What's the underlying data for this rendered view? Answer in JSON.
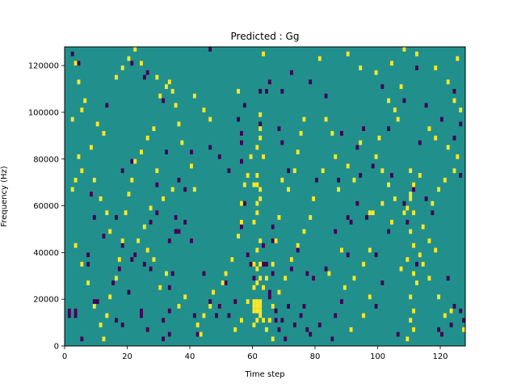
{
  "chart_data": {
    "type": "heatmap",
    "title": "Predicted : Gg",
    "xlabel": "Time step",
    "ylabel": "Frequency (Hz)",
    "xlim": [
      0,
      128
    ],
    "ylim": [
      0,
      128000
    ],
    "x_ticks": [
      0,
      20,
      40,
      60,
      80,
      100,
      120
    ],
    "y_ticks": [
      0,
      20000,
      40000,
      60000,
      80000,
      100000,
      120000
    ],
    "x_tick_labels": [
      "0",
      "20",
      "40",
      "60",
      "80",
      "100",
      "120"
    ],
    "y_tick_labels": [
      "0",
      "20000",
      "40000",
      "60000",
      "80000",
      "100000",
      "120000"
    ],
    "grid": false,
    "colormap": "viridis",
    "colors": {
      "background": "#21908d",
      "low": "#440154",
      "high": "#fde725"
    },
    "cells_low": [
      [
        1,
        12000
      ],
      [
        1,
        14000
      ],
      [
        3,
        12000
      ],
      [
        3,
        14000
      ],
      [
        5,
        2000
      ],
      [
        7,
        38000
      ],
      [
        7,
        34000
      ],
      [
        9,
        18000
      ],
      [
        10,
        18000
      ],
      [
        9,
        54000
      ],
      [
        8,
        64000
      ],
      [
        12,
        46000
      ],
      [
        15,
        26000
      ],
      [
        16,
        10000
      ],
      [
        17,
        32000
      ],
      [
        18,
        8000
      ],
      [
        18,
        42000
      ],
      [
        20,
        22000
      ],
      [
        21,
        36000
      ],
      [
        22,
        38000
      ],
      [
        24,
        12000
      ],
      [
        24,
        14000
      ],
      [
        25,
        34000
      ],
      [
        26,
        6000
      ],
      [
        27,
        52000
      ],
      [
        27,
        32000
      ],
      [
        29,
        56000
      ],
      [
        31,
        2000
      ],
      [
        31,
        10000
      ],
      [
        33,
        24000
      ],
      [
        33,
        44000
      ],
      [
        34,
        30000
      ],
      [
        35,
        54000
      ],
      [
        36,
        48000
      ],
      [
        33,
        14000
      ],
      [
        33,
        4000
      ],
      [
        38,
        52000
      ],
      [
        40,
        44000
      ],
      [
        41,
        12000
      ],
      [
        42,
        4000
      ],
      [
        44,
        30000
      ],
      [
        46,
        18000
      ],
      [
        48,
        12000
      ],
      [
        49,
        16000
      ],
      [
        51,
        26000
      ],
      [
        52,
        12000
      ],
      [
        53,
        36000
      ],
      [
        54,
        18000
      ],
      [
        56,
        50000
      ],
      [
        57,
        60000
      ],
      [
        58,
        38000
      ],
      [
        59,
        34000
      ],
      [
        63,
        34000
      ],
      [
        64,
        34000
      ],
      [
        65,
        20000
      ],
      [
        65,
        22000
      ],
      [
        66,
        30000
      ],
      [
        66,
        44000
      ],
      [
        66,
        50000
      ],
      [
        67,
        10000
      ],
      [
        67,
        14000
      ],
      [
        68,
        6000
      ],
      [
        69,
        10000
      ],
      [
        70,
        2000
      ],
      [
        71,
        16000
      ],
      [
        72,
        32000
      ],
      [
        73,
        8000
      ],
      [
        75,
        12000
      ],
      [
        76,
        16000
      ],
      [
        77,
        6000
      ],
      [
        78,
        4000
      ],
      [
        79,
        28000
      ],
      [
        81,
        8000
      ],
      [
        83,
        32000
      ],
      [
        85,
        2000
      ],
      [
        86,
        12000
      ],
      [
        88,
        18000
      ],
      [
        90,
        38000
      ],
      [
        91,
        52000
      ],
      [
        93,
        60000
      ],
      [
        94,
        72000
      ],
      [
        96,
        54000
      ],
      [
        99,
        16000
      ],
      [
        99,
        38000
      ],
      [
        101,
        26000
      ],
      [
        103,
        48000
      ],
      [
        104,
        72000
      ],
      [
        106,
        4000
      ],
      [
        108,
        60000
      ],
      [
        109,
        52000
      ],
      [
        112,
        34000
      ],
      [
        115,
        62000
      ],
      [
        117,
        56000
      ],
      [
        119,
        6000
      ],
      [
        120,
        4000
      ],
      [
        122,
        28000
      ],
      [
        123,
        8000
      ],
      [
        124,
        16000
      ],
      [
        126,
        14000
      ],
      [
        127,
        10000
      ],
      [
        46,
        126000
      ],
      [
        64,
        108000
      ],
      [
        69,
        108000
      ],
      [
        2,
        124000
      ],
      [
        4,
        120000
      ],
      [
        13,
        102000
      ],
      [
        21,
        120000
      ],
      [
        25,
        114000
      ],
      [
        26,
        116000
      ],
      [
        31,
        104000
      ],
      [
        68,
        92000
      ],
      [
        69,
        86000
      ],
      [
        56,
        78000
      ],
      [
        52,
        74000
      ],
      [
        56,
        86000
      ],
      [
        56,
        90000
      ],
      [
        62,
        94000
      ],
      [
        71,
        74000
      ],
      [
        80,
        70000
      ],
      [
        87,
        70000
      ],
      [
        112,
        118000
      ],
      [
        115,
        102000
      ],
      [
        120,
        96000
      ],
      [
        124,
        108000
      ],
      [
        126,
        94000
      ],
      [
        113,
        86000
      ],
      [
        124,
        88000
      ],
      [
        126,
        72000
      ],
      [
        108,
        104000
      ],
      [
        101,
        110000
      ],
      [
        93,
        84000
      ],
      [
        35,
        48000
      ],
      [
        38,
        66000
      ],
      [
        16,
        54000
      ],
      [
        18,
        74000
      ],
      [
        21,
        78000
      ],
      [
        29,
        68000
      ],
      [
        32,
        82000
      ],
      [
        36,
        70000
      ],
      [
        40,
        82000
      ],
      [
        46,
        84000
      ],
      [
        49,
        80000
      ],
      [
        55,
        96000
      ],
      [
        57,
        102000
      ],
      [
        62,
        108000
      ],
      [
        65,
        112000
      ],
      [
        72,
        116000
      ],
      [
        78,
        112000
      ],
      [
        83,
        106000
      ],
      [
        88,
        90000
      ],
      [
        95,
        92000
      ],
      [
        103,
        92000
      ],
      [
        111,
        66000
      ],
      [
        98,
        76000
      ],
      [
        90,
        54000
      ],
      [
        86,
        48000
      ],
      [
        77,
        30000
      ],
      [
        74,
        40000
      ],
      [
        63,
        42000
      ],
      [
        60,
        28000
      ]
    ],
    "cells_high": [
      [
        60,
        14000
      ],
      [
        60,
        16000
      ],
      [
        60,
        18000
      ],
      [
        61,
        14000
      ],
      [
        61,
        16000
      ],
      [
        61,
        18000
      ],
      [
        62,
        14000
      ],
      [
        62,
        16000
      ],
      [
        62,
        18000
      ],
      [
        60,
        8000
      ],
      [
        61,
        10000
      ],
      [
        62,
        12000
      ],
      [
        63,
        10000
      ],
      [
        60,
        24000
      ],
      [
        61,
        26000
      ],
      [
        62,
        28000
      ],
      [
        61,
        32000
      ],
      [
        62,
        34000
      ],
      [
        60,
        34000
      ],
      [
        61,
        40000
      ],
      [
        62,
        44000
      ],
      [
        60,
        52000
      ],
      [
        61,
        56000
      ],
      [
        61,
        60000
      ],
      [
        62,
        62000
      ],
      [
        61,
        68000
      ],
      [
        60,
        68000
      ],
      [
        62,
        66000
      ],
      [
        61,
        72000
      ],
      [
        63,
        80000
      ],
      [
        61,
        84000
      ],
      [
        62,
        88000
      ],
      [
        62,
        92000
      ],
      [
        62,
        98000
      ],
      [
        108,
        56000
      ],
      [
        109,
        58000
      ],
      [
        110,
        62000
      ],
      [
        110,
        64000
      ],
      [
        111,
        56000
      ],
      [
        110,
        48000
      ],
      [
        111,
        42000
      ],
      [
        109,
        36000
      ],
      [
        111,
        30000
      ],
      [
        107,
        32000
      ],
      [
        112,
        26000
      ],
      [
        110,
        20000
      ],
      [
        111,
        14000
      ],
      [
        110,
        10000
      ],
      [
        111,
        6000
      ],
      [
        109,
        2000
      ],
      [
        111,
        68000
      ],
      [
        110,
        74000
      ],
      [
        113,
        72000
      ],
      [
        97,
        56000
      ],
      [
        98,
        56000
      ],
      [
        101,
        60000
      ],
      [
        104,
        52000
      ],
      [
        105,
        62000
      ],
      [
        103,
        68000
      ],
      [
        101,
        74000
      ],
      [
        99,
        80000
      ],
      [
        100,
        88000
      ],
      [
        94,
        86000
      ],
      [
        92,
        70000
      ],
      [
        90,
        76000
      ],
      [
        87,
        66000
      ],
      [
        86,
        80000
      ],
      [
        85,
        90000
      ],
      [
        83,
        96000
      ],
      [
        82,
        74000
      ],
      [
        79,
        62000
      ],
      [
        78,
        54000
      ],
      [
        76,
        48000
      ],
      [
        74,
        42000
      ],
      [
        72,
        36000
      ],
      [
        70,
        28000
      ],
      [
        68,
        22000
      ],
      [
        66,
        16000
      ],
      [
        65,
        10000
      ],
      [
        64,
        6000
      ],
      [
        66,
        2000
      ],
      [
        69,
        70000
      ],
      [
        71,
        66000
      ],
      [
        73,
        74000
      ],
      [
        74,
        82000
      ],
      [
        75,
        90000
      ],
      [
        76,
        96000
      ],
      [
        43,
        4000
      ],
      [
        42,
        8000
      ],
      [
        44,
        12000
      ],
      [
        46,
        16000
      ],
      [
        47,
        22000
      ],
      [
        50,
        26000
      ],
      [
        51,
        30000
      ],
      [
        53,
        36000
      ],
      [
        55,
        46000
      ],
      [
        56,
        52000
      ],
      [
        56,
        60000
      ],
      [
        57,
        68000
      ],
      [
        58,
        72000
      ],
      [
        59,
        80000
      ],
      [
        41,
        66000
      ],
      [
        40,
        76000
      ],
      [
        37,
        86000
      ],
      [
        36,
        94000
      ],
      [
        35,
        102000
      ],
      [
        34,
        108000
      ],
      [
        33,
        112000
      ],
      [
        28,
        92000
      ],
      [
        26,
        88000
      ],
      [
        24,
        82000
      ],
      [
        22,
        78000
      ],
      [
        21,
        70000
      ],
      [
        20,
        64000
      ],
      [
        19,
        56000
      ],
      [
        18,
        44000
      ],
      [
        17,
        36000
      ],
      [
        16,
        28000
      ],
      [
        14,
        20000
      ],
      [
        13,
        12000
      ],
      [
        12,
        2000
      ],
      [
        11,
        8000
      ],
      [
        9,
        16000
      ],
      [
        7,
        26000
      ],
      [
        5,
        34000
      ],
      [
        3,
        42000
      ],
      [
        2,
        66000
      ],
      [
        3,
        70000
      ],
      [
        5,
        74000
      ],
      [
        4,
        80000
      ],
      [
        2,
        96000
      ],
      [
        5,
        100000
      ],
      [
        6,
        104000
      ],
      [
        4,
        112000
      ],
      [
        3,
        120000
      ],
      [
        16,
        114000
      ],
      [
        18,
        118000
      ],
      [
        20,
        122000
      ],
      [
        22,
        126000
      ],
      [
        24,
        120000
      ],
      [
        29,
        114000
      ],
      [
        32,
        110000
      ],
      [
        30,
        106000
      ],
      [
        41,
        106000
      ],
      [
        44,
        100000
      ],
      [
        46,
        96000
      ],
      [
        55,
        108000
      ],
      [
        63,
        124000
      ],
      [
        81,
        122000
      ],
      [
        90,
        124000
      ],
      [
        94,
        118000
      ],
      [
        99,
        116000
      ],
      [
        104,
        120000
      ],
      [
        108,
        126000
      ],
      [
        112,
        124000
      ],
      [
        118,
        118000
      ],
      [
        122,
        112000
      ],
      [
        124,
        104000
      ],
      [
        126,
        100000
      ],
      [
        125,
        122000
      ],
      [
        127,
        6000
      ],
      [
        123,
        14000
      ],
      [
        121,
        12000
      ],
      [
        119,
        20000
      ],
      [
        116,
        28000
      ],
      [
        114,
        34000
      ],
      [
        113,
        38000
      ],
      [
        116,
        44000
      ],
      [
        118,
        40000
      ],
      [
        114,
        50000
      ],
      [
        117,
        60000
      ],
      [
        119,
        66000
      ],
      [
        121,
        70000
      ],
      [
        124,
        74000
      ],
      [
        125,
        80000
      ],
      [
        122,
        84000
      ],
      [
        118,
        88000
      ],
      [
        116,
        92000
      ],
      [
        106,
        96000
      ],
      [
        105,
        100000
      ],
      [
        103,
        104000
      ],
      [
        107,
        110000
      ],
      [
        91,
        6000
      ],
      [
        95,
        12000
      ],
      [
        97,
        20000
      ],
      [
        92,
        28000
      ],
      [
        95,
        34000
      ],
      [
        97,
        40000
      ],
      [
        84,
        30000
      ],
      [
        89,
        24000
      ],
      [
        88,
        40000
      ],
      [
        64,
        28000
      ],
      [
        63,
        24000
      ],
      [
        66,
        34000
      ],
      [
        67,
        44000
      ],
      [
        68,
        54000
      ],
      [
        58,
        18000
      ],
      [
        56,
        10000
      ],
      [
        54,
        6000
      ],
      [
        30,
        24000
      ],
      [
        32,
        30000
      ],
      [
        28,
        36000
      ],
      [
        26,
        40000
      ],
      [
        23,
        44000
      ],
      [
        25,
        50000
      ],
      [
        27,
        58000
      ],
      [
        36,
        16000
      ],
      [
        38,
        20000
      ],
      [
        31,
        62000
      ],
      [
        29,
        74000
      ],
      [
        34,
        66000
      ],
      [
        14,
        48000
      ],
      [
        13,
        56000
      ],
      [
        11,
        62000
      ],
      [
        9,
        70000
      ],
      [
        8,
        84000
      ],
      [
        12,
        90000
      ],
      [
        10,
        94000
      ]
    ]
  }
}
